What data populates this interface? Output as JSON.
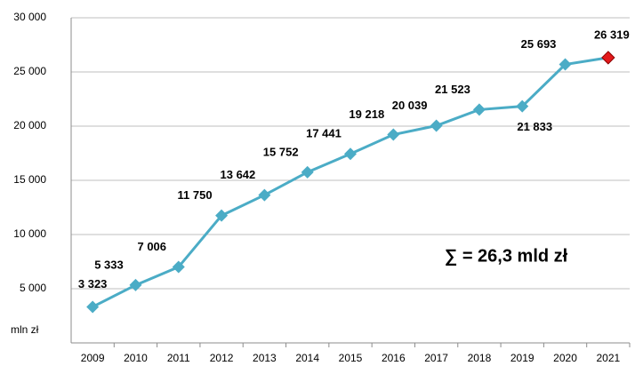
{
  "chart_data": {
    "type": "line",
    "categories": [
      "2009",
      "2010",
      "2011",
      "2012",
      "2013",
      "2014",
      "2015",
      "2016",
      "2017",
      "2018",
      "2019",
      "2020",
      "2021"
    ],
    "series": [
      {
        "name": null,
        "color": "#4bacc6",
        "values": [
          3323,
          5333,
          7006,
          11750,
          13642,
          15752,
          17441,
          19218,
          20039,
          21523,
          21833,
          25693,
          26319
        ],
        "value_labels": [
          "3 323",
          "5 333",
          "7 006",
          "11 750",
          "13 642",
          "15 752",
          "17 441",
          "19 218",
          "20 039",
          "21 523",
          "21 833",
          "25 693",
          "26 319"
        ]
      }
    ],
    "last_point_color": "#e31a1c",
    "ylim": [
      0,
      30000
    ],
    "yticks": [
      {
        "value": 5000,
        "label": "5 000"
      },
      {
        "value": 10000,
        "label": "10 000"
      },
      {
        "value": 15000,
        "label": "15 000"
      },
      {
        "value": 20000,
        "label": "20 000"
      },
      {
        "value": 25000,
        "label": "25 000"
      },
      {
        "value": 30000,
        "label": "30 000"
      }
    ],
    "y_unit_label": "mln zł",
    "grid": true,
    "annotation": "∑ = 26,3 mld zł"
  }
}
